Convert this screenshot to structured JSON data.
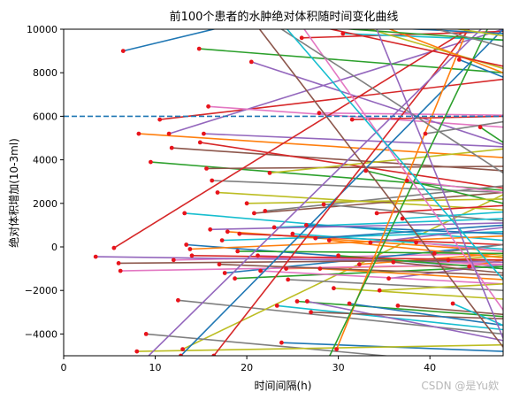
{
  "chart_data": {
    "type": "line",
    "title": "前100个患者的水肿绝对体积随时间变化曲线",
    "xlabel": "时间间隔(h)",
    "ylabel": "绝对体积增加(10-3ml)",
    "xlim": [
      0,
      48
    ],
    "ylim": [
      -5000,
      10000
    ],
    "xticks": [
      0,
      10,
      20,
      30,
      40
    ],
    "yticks": [
      -4000,
      -2000,
      0,
      2000,
      4000,
      6000,
      8000,
      10000
    ],
    "grid": false,
    "reference_line": {
      "y": 6000,
      "style": "dashed",
      "color": "#1f77b4"
    },
    "palette": [
      "#1f77b4",
      "#ff7f0e",
      "#2ca02c",
      "#d62728",
      "#9467bd",
      "#8c564b",
      "#e377c2",
      "#7f7f7f",
      "#bcbd22",
      "#17becf"
    ],
    "marker_color": "#e8141c",
    "series": [
      {
        "x": [
          6.5,
          48
        ],
        "y": [
          9000,
          13200
        ]
      },
      {
        "x": [
          8.2,
          48
        ],
        "y": [
          5200,
          4100
        ]
      },
      {
        "x": [
          9.5,
          48
        ],
        "y": [
          3900,
          2600
        ]
      },
      {
        "x": [
          10.5,
          48
        ],
        "y": [
          5850,
          7700
        ]
      },
      {
        "x": [
          11.5,
          48
        ],
        "y": [
          5200,
          10000
        ]
      },
      {
        "x": [
          11.8,
          48
        ],
        "y": [
          4550,
          3500
        ]
      },
      {
        "x": [
          12.0,
          48
        ],
        "y": [
          -600,
          -300
        ]
      },
      {
        "x": [
          12.5,
          48
        ],
        "y": [
          -2450,
          -4000
        ]
      },
      {
        "x": [
          13.0,
          48
        ],
        "y": [
          -4700,
          2400
        ]
      },
      {
        "x": [
          13.2,
          48
        ],
        "y": [
          1550,
          300
        ]
      },
      {
        "x": [
          13.4,
          48
        ],
        "y": [
          100,
          -1000
        ]
      },
      {
        "x": [
          13.8,
          48
        ],
        "y": [
          -100,
          500
        ]
      },
      {
        "x": [
          14.8,
          48
        ],
        "y": [
          9100,
          8000
        ]
      },
      {
        "x": [
          14.9,
          48
        ],
        "y": [
          4800,
          2700
        ]
      },
      {
        "x": [
          15.3,
          48
        ],
        "y": [
          5200,
          4600
        ]
      },
      {
        "x": [
          15.6,
          48
        ],
        "y": [
          3600,
          3700
        ]
      },
      {
        "x": [
          15.8,
          48
        ],
        "y": [
          6450,
          5500
        ]
      },
      {
        "x": [
          16.2,
          48
        ],
        "y": [
          3050,
          2500
        ]
      },
      {
        "x": [
          16.8,
          48
        ],
        "y": [
          2500,
          1700
        ]
      },
      {
        "x": [
          17.3,
          48
        ],
        "y": [
          300,
          700
        ]
      },
      {
        "x": [
          17.6,
          48
        ],
        "y": [
          -1200,
          100
        ]
      },
      {
        "x": [
          17.9,
          48
        ],
        "y": [
          700,
          -200
        ]
      },
      {
        "x": [
          18.7,
          48
        ],
        "y": [
          -1450,
          -900
        ]
      },
      {
        "x": [
          19.2,
          48
        ],
        "y": [
          600,
          100
        ]
      },
      {
        "x": [
          20.5,
          48
        ],
        "y": [
          8500,
          4700
        ]
      },
      {
        "x": [
          20.8,
          48
        ],
        "y": [
          1550,
          2500
        ]
      },
      {
        "x": [
          21.2,
          48
        ],
        "y": [
          -400,
          -800
        ]
      },
      {
        "x": [
          22.0,
          48
        ],
        "y": [
          1650,
          2800
        ]
      },
      {
        "x": [
          22.5,
          48
        ],
        "y": [
          3400,
          4500
        ]
      },
      {
        "x": [
          23.3,
          48
        ],
        "y": [
          -2700,
          -3800
        ]
      },
      {
        "x": [
          23.8,
          48
        ],
        "y": [
          -4400,
          -4800
        ]
      },
      {
        "x": [
          24.3,
          48
        ],
        "y": [
          -1000,
          -800
        ]
      },
      {
        "x": [
          25.5,
          48
        ],
        "y": [
          -2500,
          -3200
        ]
      },
      {
        "x": [
          26.0,
          48
        ],
        "y": [
          9600,
          9900
        ]
      },
      {
        "x": [
          26.6,
          48
        ],
        "y": [
          -2500,
          -4300
        ]
      },
      {
        "x": [
          27.0,
          48
        ],
        "y": [
          -3000,
          -3300
        ]
      },
      {
        "x": [
          27.9,
          48
        ],
        "y": [
          6150,
          6050
        ]
      },
      {
        "x": [
          28.4,
          48
        ],
        "y": [
          1950,
          1200
        ]
      },
      {
        "x": [
          29.5,
          48
        ],
        "y": [
          -1900,
          -2400
        ]
      },
      {
        "x": [
          30.5,
          48
        ],
        "y": [
          9800,
          9500
        ]
      },
      {
        "x": [
          31.2,
          48
        ],
        "y": [
          -2600,
          -3600
        ]
      },
      {
        "x": [
          32.3,
          48
        ],
        "y": [
          -800,
          -300
        ]
      },
      {
        "x": [
          33.0,
          48
        ],
        "y": [
          3500,
          2000
        ]
      },
      {
        "x": [
          34.2,
          48
        ],
        "y": [
          1550,
          1900
        ]
      },
      {
        "x": [
          35.5,
          48
        ],
        "y": [
          -1450,
          -800
        ]
      },
      {
        "x": [
          36.5,
          48
        ],
        "y": [
          -2700,
          -3100
        ]
      },
      {
        "x": [
          37.5,
          48
        ],
        "y": [
          3050,
          2500
        ]
      },
      {
        "x": [
          39.5,
          48
        ],
        "y": [
          5200,
          5750
        ]
      },
      {
        "x": [
          42.0,
          48
        ],
        "y": [
          -600,
          -400
        ]
      },
      {
        "x": [
          42.5,
          48
        ],
        "y": [
          -2600,
          -3600
        ]
      },
      {
        "x": [
          43.2,
          48
        ],
        "y": [
          8600,
          7800
        ]
      },
      {
        "x": [
          44.3,
          48
        ],
        "y": [
          -900,
          -600
        ]
      },
      {
        "x": [
          45.5,
          48
        ],
        "y": [
          5500,
          4800
        ]
      },
      {
        "x": [
          5.5,
          48
        ],
        "y": [
          -50,
          11000
        ]
      },
      {
        "x": [
          3.5,
          48
        ],
        "y": [
          -450,
          -700
        ]
      },
      {
        "x": [
          6.0,
          48
        ],
        "y": [
          -750,
          -600
        ]
      },
      {
        "x": [
          6.2,
          48
        ],
        "y": [
          -1100,
          -800
        ]
      },
      {
        "x": [
          9.0,
          48
        ],
        "y": [
          -4000,
          -5500
        ]
      },
      {
        "x": [
          8.0,
          48
        ],
        "y": [
          -4800,
          -4500
        ]
      },
      {
        "x": [
          25.0,
          48
        ],
        "y": [
          600,
          -100
        ]
      },
      {
        "x": [
          27.5,
          48
        ],
        "y": [
          400,
          1000
        ]
      },
      {
        "x": [
          29.0,
          48
        ],
        "y": [
          300,
          -500
        ]
      },
      {
        "x": [
          30.0,
          48
        ],
        "y": [
          -400,
          -1000
        ]
      },
      {
        "x": [
          31.5,
          48
        ],
        "y": [
          5850,
          6000
        ]
      },
      {
        "x": [
          33.5,
          48
        ],
        "y": [
          200,
          900
        ]
      },
      {
        "x": [
          36.0,
          48
        ],
        "y": [
          -700,
          -1200
        ]
      },
      {
        "x": [
          38.5,
          48
        ],
        "y": [
          200,
          -200
        ]
      },
      {
        "x": [
          40.5,
          48
        ],
        "y": [
          -300,
          100
        ]
      },
      {
        "x": [
          20.0,
          48
        ],
        "y": [
          2000,
          2200
        ]
      },
      {
        "x": [
          23.0,
          48
        ],
        "y": [
          900,
          1300
        ]
      },
      {
        "x": [
          26.5,
          48
        ],
        "y": [
          1000,
          600
        ]
      },
      {
        "x": [
          28.0,
          48
        ],
        "y": [
          -1000,
          -1500
        ]
      },
      {
        "x": [
          19.0,
          48
        ],
        "y": [
          -200,
          -300
        ]
      },
      {
        "x": [
          14.0,
          48
        ],
        "y": [
          -400,
          -600
        ]
      },
      {
        "x": [
          16.0,
          48
        ],
        "y": [
          800,
          1100
        ]
      },
      {
        "x": [
          17.0,
          48
        ],
        "y": [
          -800,
          -1300
        ]
      },
      {
        "x": [
          21.5,
          48
        ],
        "y": [
          -1100,
          -1700
        ]
      },
      {
        "x": [
          24.5,
          48
        ],
        "y": [
          -1500,
          -2000
        ]
      },
      {
        "x": [
          34.5,
          48
        ],
        "y": [
          -2000,
          -1700
        ]
      },
      {
        "x": [
          37.0,
          48
        ],
        "y": [
          1300,
          1600
        ]
      },
      {
        "x": [
          12.8,
          48
        ],
        "y": [
          -5000,
          10000
        ]
      },
      {
        "x": [
          29.8,
          48
        ],
        "y": [
          -4700,
          14000
        ]
      },
      {
        "x": [
          28.6,
          48
        ],
        "y": [
          -5400,
          11500
        ]
      },
      {
        "x": [
          16.4,
          48
        ],
        "y": [
          -5000,
          12000
        ]
      },
      {
        "x": [
          8.8,
          48
        ],
        "y": [
          -5200,
          11000
        ]
      },
      {
        "x": [
          20.3,
          48
        ],
        "y": [
          10600,
          -4600
        ]
      },
      {
        "x": [
          25.6,
          48
        ],
        "y": [
          10400,
          -2900
        ]
      },
      {
        "x": [
          22.7,
          48
        ],
        "y": [
          10300,
          3400
        ]
      },
      {
        "x": [
          31.0,
          48
        ],
        "y": [
          10300,
          8200
        ]
      },
      {
        "x": [
          24.0,
          48
        ],
        "y": [
          10200,
          -1500
        ]
      },
      {
        "x": [
          15.0,
          48
        ],
        "y": [
          10500,
          9800
        ]
      },
      {
        "x": [
          35.0,
          48
        ],
        "y": [
          10100,
          8000
        ]
      },
      {
        "x": [
          18.2,
          48
        ],
        "y": [
          10400,
          9500
        ]
      },
      {
        "x": [
          27.0,
          48
        ],
        "y": [
          10200,
          8300
        ]
      },
      {
        "x": [
          33.8,
          48
        ],
        "y": [
          10400,
          -4200
        ]
      },
      {
        "x": [
          11.0,
          48
        ],
        "y": [
          11000,
          10400
        ]
      },
      {
        "x": [
          10.0,
          48
        ],
        "y": [
          10700,
          10100
        ]
      },
      {
        "x": [
          38.0,
          48
        ],
        "y": [
          10300,
          9200
        ]
      },
      {
        "x": [
          40.0,
          48
        ],
        "y": [
          10200,
          9700
        ]
      },
      {
        "x": [
          44.0,
          48
        ],
        "y": [
          10150,
          10050
        ]
      }
    ]
  },
  "watermark": "CSDN @是Yu欸"
}
